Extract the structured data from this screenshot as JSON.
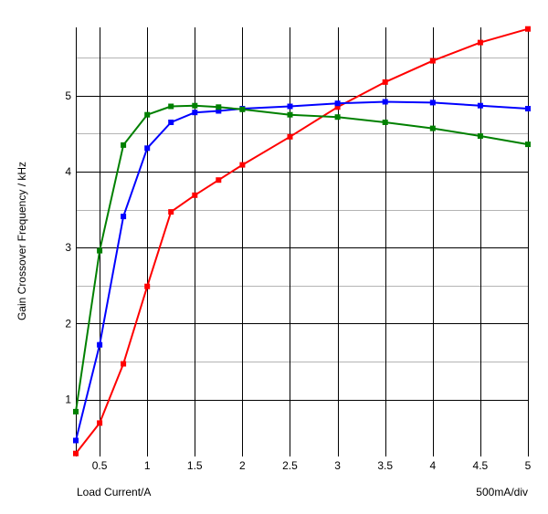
{
  "chart_data": {
    "type": "line",
    "title": "",
    "xlabel": "Load Current/A",
    "ylabel": "Gain Crossover Frequency / kHz",
    "scale_note": "500mA/div",
    "xlim": [
      0.25,
      5
    ],
    "ylim": [
      0.25,
      5.9
    ],
    "grid": true,
    "x_ticks": [
      0.5,
      1,
      1.5,
      2,
      2.5,
      3,
      3.5,
      4,
      4.5,
      5
    ],
    "x_tick_labels": [
      "0.5",
      "1",
      "1.5",
      "2",
      "2.5",
      "3",
      "3.5",
      "4",
      "4.5",
      "5"
    ],
    "y_major_ticks": [
      1,
      2,
      3,
      4,
      5
    ],
    "y_tick_labels": [
      "1",
      "2",
      "3",
      "4",
      "5"
    ],
    "y_minor_ticks": [
      1.5,
      2.5,
      3.5,
      4.5,
      5.5
    ],
    "series": [
      {
        "color": "#ff0000",
        "x": [
          0.25,
          0.5,
          0.75,
          1,
          1.25,
          1.5,
          1.75,
          2,
          2.5,
          3,
          3.5,
          4,
          4.5,
          5
        ],
        "y": [
          0.29,
          0.69,
          1.47,
          2.49,
          3.47,
          3.69,
          3.89,
          4.09,
          4.46,
          4.85,
          5.18,
          5.46,
          5.7,
          5.88
        ]
      },
      {
        "color": "#0000ff",
        "x": [
          0.25,
          0.5,
          0.75,
          1,
          1.25,
          1.5,
          1.75,
          2,
          2.5,
          3,
          3.5,
          4,
          4.5,
          5
        ],
        "y": [
          0.46,
          1.72,
          3.41,
          4.31,
          4.65,
          4.78,
          4.8,
          4.83,
          4.86,
          4.9,
          4.92,
          4.91,
          4.87,
          4.83
        ]
      },
      {
        "color": "#008000",
        "x": [
          0.25,
          0.5,
          0.75,
          1,
          1.25,
          1.5,
          1.75,
          2,
          2.5,
          3,
          3.5,
          4,
          4.5,
          5
        ],
        "y": [
          0.84,
          2.96,
          4.35,
          4.75,
          4.86,
          4.87,
          4.85,
          4.82,
          4.75,
          4.72,
          4.65,
          4.57,
          4.47,
          4.36
        ]
      }
    ]
  }
}
